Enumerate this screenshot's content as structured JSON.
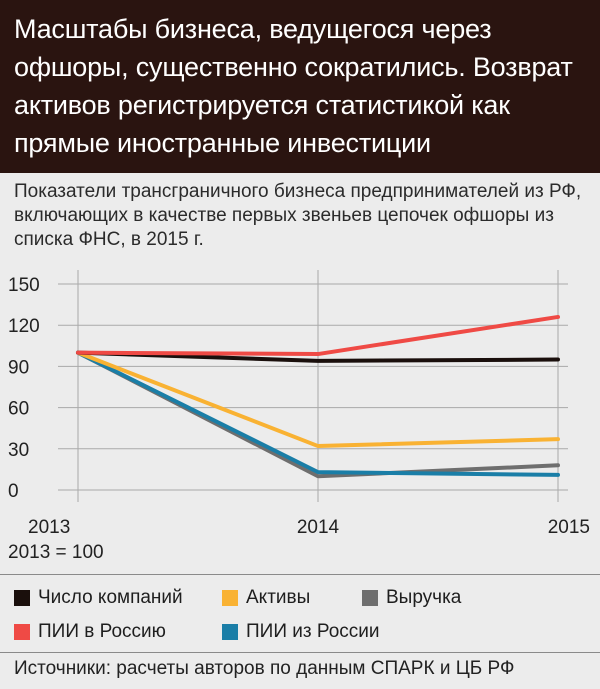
{
  "header": {
    "title": "Масштабы бизнеса, ведущегося через офшоры, существенно сократились. Возврат активов регистрируется статистикой как прямые иностранные инвестиции"
  },
  "chart_data": {
    "type": "line",
    "title": "Показатели трансграничного бизнеса предпринимателей из РФ, включающих в качестве первых звеньев цепочек офшоры из списка ФНС, в 2015 г.",
    "base_note": "2013 = 100",
    "x": [
      "2013",
      "2014",
      "2015"
    ],
    "ylim": [
      0,
      150
    ],
    "yticks": [
      "0",
      "30",
      "60",
      "90",
      "120",
      "150"
    ],
    "grid": true,
    "legend_position": "bottom",
    "series": [
      {
        "name": "Число компаний",
        "color": "#1a0f0c",
        "values": [
          100,
          94,
          95
        ]
      },
      {
        "name": "Активы",
        "color": "#f9b233",
        "values": [
          100,
          32,
          37
        ]
      },
      {
        "name": "Выручка",
        "color": "#6e6e6e",
        "values": [
          100,
          10,
          18
        ]
      },
      {
        "name": "ПИИ в Россию",
        "color": "#ef4a45",
        "values": [
          100,
          99,
          126
        ]
      },
      {
        "name": "ПИИ из России",
        "color": "#1a7ea7",
        "values": [
          100,
          13,
          11
        ]
      }
    ]
  },
  "footer": {
    "source": "Источники: расчеты авторов по данным СПАРК и ЦБ РФ"
  }
}
